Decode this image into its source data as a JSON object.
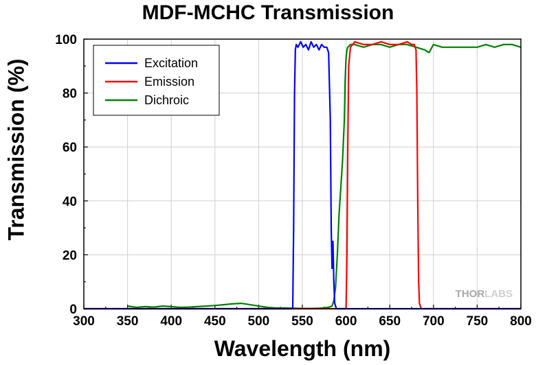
{
  "chart_data": {
    "type": "line",
    "title": "MDF-MCHC Transmission",
    "xlabel": "Wavelength (nm)",
    "ylabel": "Transmission (%)",
    "xlim": [
      300,
      800
    ],
    "ylim": [
      0,
      100
    ],
    "xticks": [
      "300",
      "350",
      "400",
      "450",
      "500",
      "550",
      "600",
      "650",
      "700",
      "750",
      "800"
    ],
    "yticks": [
      "0",
      "20",
      "40",
      "60",
      "80",
      "100"
    ],
    "grid": true,
    "legend_position": "top-left",
    "watermark": "THORLABS",
    "series": [
      {
        "name": "Excitation",
        "color": "#0000ff",
        "x": [
          300,
          539,
          540,
          541,
          542,
          543,
          545,
          548,
          551,
          554,
          557,
          560,
          563,
          566,
          569,
          572,
          575,
          578,
          580,
          582,
          583,
          584,
          585,
          586,
          587,
          588,
          589,
          590,
          800
        ],
        "y": [
          0,
          0,
          30,
          80,
          96,
          98,
          97,
          99,
          97,
          98,
          96,
          99,
          97,
          98,
          96,
          98,
          97,
          97,
          95,
          70,
          30,
          15,
          25,
          10,
          2,
          1,
          0,
          0,
          0
        ]
      },
      {
        "name": "Emission",
        "color": "#ff0000",
        "x": [
          300,
          600,
          601,
          602,
          603,
          605,
          610,
          620,
          630,
          640,
          650,
          660,
          670,
          675,
          678,
          680,
          681,
          682,
          683,
          684,
          686,
          800
        ],
        "y": [
          0,
          0,
          20,
          60,
          90,
          97,
          99,
          98,
          98,
          99,
          98,
          98,
          99,
          98,
          98,
          96,
          80,
          40,
          10,
          2,
          0,
          0
        ]
      },
      {
        "name": "Dichroic",
        "color": "#008000",
        "x": [
          350,
          360,
          370,
          380,
          390,
          400,
          410,
          420,
          430,
          440,
          450,
          460,
          470,
          480,
          490,
          500,
          510,
          520,
          530,
          540,
          550,
          560,
          570,
          580,
          584,
          586,
          588,
          590,
          592,
          594,
          596,
          598,
          599,
          600,
          601,
          602,
          605,
          610,
          620,
          630,
          640,
          650,
          660,
          670,
          680,
          690,
          695,
          700,
          710,
          720,
          730,
          740,
          750,
          760,
          770,
          780,
          790,
          800
        ],
        "y": [
          1,
          0.5,
          0.8,
          0.6,
          1,
          0.8,
          0.5,
          0.6,
          0.8,
          1,
          1.2,
          1.5,
          1.8,
          2,
          1.5,
          1,
          0.5,
          0.3,
          0.3,
          0.2,
          0.1,
          0.1,
          0.2,
          0.5,
          1,
          3,
          8,
          20,
          35,
          45,
          55,
          70,
          85,
          93,
          96,
          97,
          98,
          98,
          97,
          98,
          98,
          97,
          98,
          98,
          97,
          96,
          95,
          98,
          97,
          97,
          97,
          97,
          97,
          98,
          97,
          98,
          98,
          97
        ]
      }
    ]
  }
}
